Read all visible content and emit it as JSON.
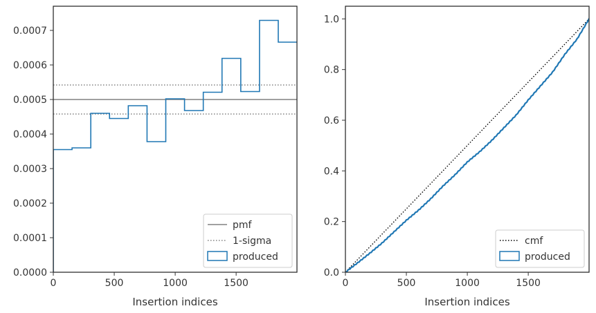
{
  "chart_data": [
    {
      "type": "histogram-step",
      "xlabel": "Insertion indices",
      "ylabel": "",
      "xlim": [
        0,
        1999
      ],
      "ylim": [
        0,
        0.00077
      ],
      "xticks": [
        0,
        500,
        1000,
        1500
      ],
      "yticks": [
        0,
        0.0001,
        0.0002,
        0.0003,
        0.0004,
        0.0005,
        0.0006,
        0.0007
      ],
      "ytick_labels": [
        "0.0000",
        "0.0001",
        "0.0002",
        "0.0003",
        "0.0004",
        "0.0005",
        "0.0006",
        "0.0007"
      ],
      "bin_edges": [
        0,
        153.8,
        307.6,
        461.4,
        615.2,
        769,
        922.8,
        1076.6,
        1230.4,
        1384.2,
        1538,
        1691.8,
        1845.6,
        1999
      ],
      "values": [
        0.000355,
        0.00036,
        0.00046,
        0.000445,
        0.000482,
        0.000378,
        0.000502,
        0.000468,
        0.000521,
        0.000619,
        0.000523,
        0.000729,
        0.000666
      ],
      "pmf": 0.0005,
      "sigma_band": [
        0.000458,
        0.000542
      ],
      "legend": {
        "placement": "lower-right",
        "entries": [
          {
            "label": "pmf",
            "style": "solid",
            "color": "#808080"
          },
          {
            "label": "1-sigma",
            "style": "dotted",
            "color": "#808080"
          },
          {
            "label": "produced",
            "style": "box",
            "color": "#1f77b4"
          }
        ]
      }
    },
    {
      "type": "line",
      "xlabel": "Insertion indices",
      "ylabel": "",
      "xlim": [
        0,
        1999
      ],
      "ylim": [
        0,
        1.05
      ],
      "xticks": [
        0,
        500,
        1000,
        1500
      ],
      "yticks": [
        0,
        0.2,
        0.4,
        0.6,
        0.8,
        1.0
      ],
      "ytick_labels": [
        "0.0",
        "0.2",
        "0.4",
        "0.6",
        "0.8",
        "1.0"
      ],
      "cmf": {
        "x": [
          0,
          1999
        ],
        "y": [
          0,
          1.0
        ]
      },
      "produced": {
        "x": [
          0,
          100,
          200,
          300,
          400,
          500,
          600,
          700,
          800,
          900,
          1000,
          1100,
          1200,
          1300,
          1400,
          1500,
          1600,
          1700,
          1800,
          1900,
          1999
        ],
        "y": [
          0,
          0.037,
          0.075,
          0.115,
          0.16,
          0.205,
          0.245,
          0.29,
          0.34,
          0.385,
          0.435,
          0.475,
          0.52,
          0.57,
          0.62,
          0.68,
          0.735,
          0.79,
          0.86,
          0.92,
          1.0
        ]
      },
      "legend": {
        "placement": "lower-right",
        "entries": [
          {
            "label": "cmf",
            "style": "dotted",
            "color": "#000000"
          },
          {
            "label": "produced",
            "style": "box",
            "color": "#1f77b4"
          }
        ]
      }
    }
  ]
}
